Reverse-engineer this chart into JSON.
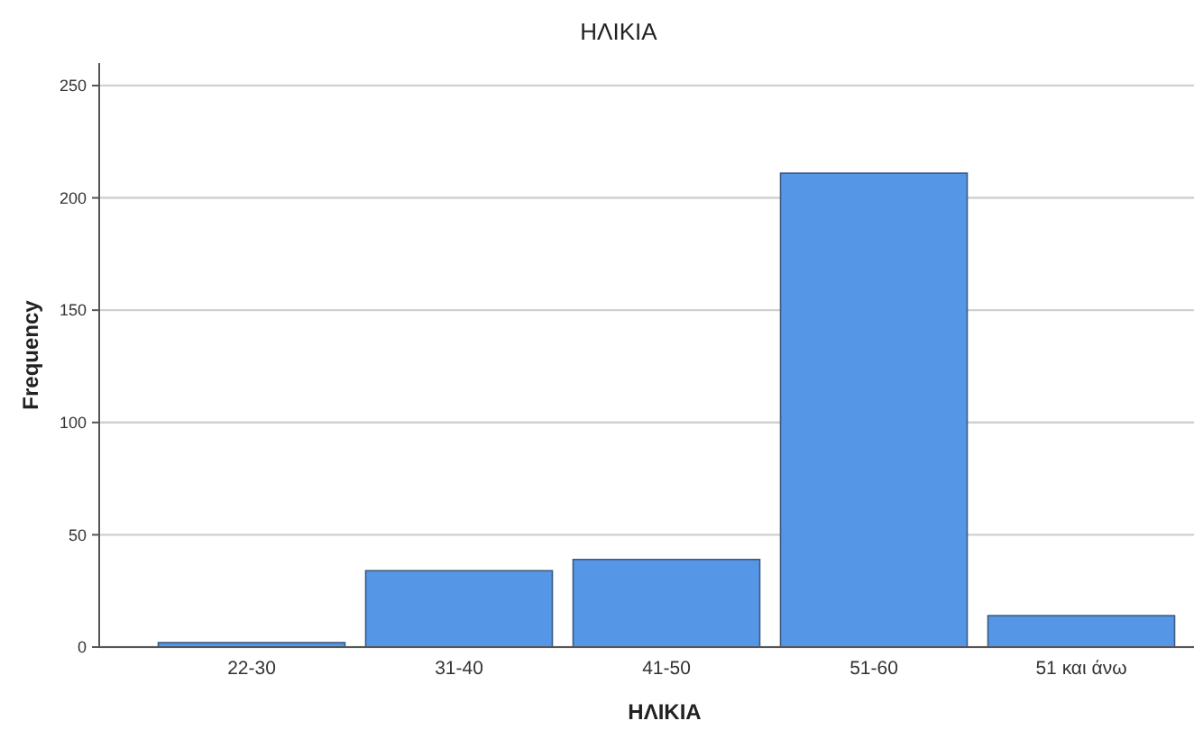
{
  "chart_data": {
    "type": "bar",
    "title": "ΗΛΙΚΙΑ",
    "xlabel": "ΗΛΙΚΙΑ",
    "ylabel": "Frequency",
    "categories": [
      "22-30",
      "31-40",
      "41-50",
      "51-60",
      "51 και άνω"
    ],
    "values": [
      2,
      34,
      39,
      211,
      14
    ],
    "color": "#5596e6",
    "ylim": [
      0,
      260
    ],
    "yticks": [
      0,
      50,
      100,
      150,
      200,
      250
    ],
    "grid": "y"
  }
}
